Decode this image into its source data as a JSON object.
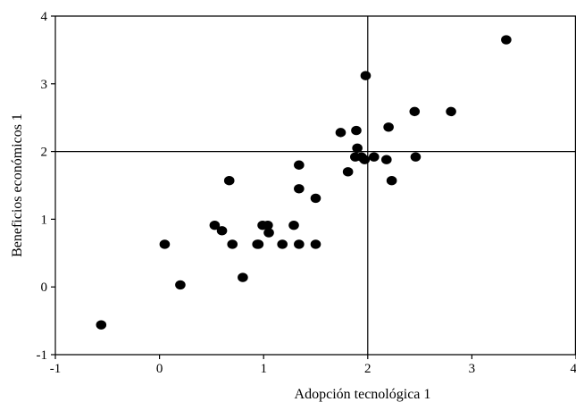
{
  "chart_data": {
    "type": "scatter",
    "xlabel": "Adopción tecnológica 1",
    "ylabel": "Beneficios económicos 1",
    "xlim": [
      -1,
      4
    ],
    "ylim": [
      -1,
      4
    ],
    "xticks": [
      "-1",
      "0",
      "1",
      "2",
      "3",
      "4"
    ],
    "yticks": [
      "-1",
      "0",
      "1",
      "2",
      "3",
      "4"
    ],
    "reference_lines": {
      "x": 2,
      "y": 2
    },
    "grid": false,
    "marker_color": "#000000",
    "points": [
      {
        "x": -0.56,
        "y": -0.56
      },
      {
        "x": 0.05,
        "y": 0.63
      },
      {
        "x": 0.2,
        "y": 0.03
      },
      {
        "x": 0.53,
        "y": 0.91
      },
      {
        "x": 0.6,
        "y": 0.83
      },
      {
        "x": 0.67,
        "y": 1.57
      },
      {
        "x": 0.7,
        "y": 0.63
      },
      {
        "x": 0.8,
        "y": 0.14
      },
      {
        "x": 0.94,
        "y": 0.63
      },
      {
        "x": 0.95,
        "y": 0.63
      },
      {
        "x": 0.99,
        "y": 0.91
      },
      {
        "x": 1.04,
        "y": 0.91
      },
      {
        "x": 1.05,
        "y": 0.8
      },
      {
        "x": 1.18,
        "y": 0.63
      },
      {
        "x": 1.29,
        "y": 0.91
      },
      {
        "x": 1.34,
        "y": 1.8
      },
      {
        "x": 1.34,
        "y": 1.45
      },
      {
        "x": 1.34,
        "y": 0.63
      },
      {
        "x": 1.5,
        "y": 1.31
      },
      {
        "x": 1.5,
        "y": 0.63
      },
      {
        "x": 1.74,
        "y": 2.28
      },
      {
        "x": 1.81,
        "y": 1.7
      },
      {
        "x": 1.88,
        "y": 1.92
      },
      {
        "x": 1.89,
        "y": 2.31
      },
      {
        "x": 1.9,
        "y": 2.05
      },
      {
        "x": 1.94,
        "y": 1.92
      },
      {
        "x": 1.97,
        "y": 1.88
      },
      {
        "x": 1.98,
        "y": 3.12
      },
      {
        "x": 2.06,
        "y": 1.92
      },
      {
        "x": 2.18,
        "y": 1.88
      },
      {
        "x": 2.2,
        "y": 2.36
      },
      {
        "x": 2.23,
        "y": 1.57
      },
      {
        "x": 2.45,
        "y": 2.59
      },
      {
        "x": 2.46,
        "y": 1.92
      },
      {
        "x": 2.8,
        "y": 2.59
      },
      {
        "x": 3.33,
        "y": 3.65
      }
    ]
  }
}
